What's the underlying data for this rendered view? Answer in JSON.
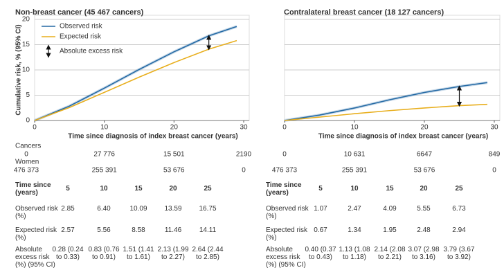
{
  "chart_data": [
    {
      "type": "line",
      "title": "Non-breast cancer (45 467 cancers)",
      "ylabel": "Cumulative risk, % (95% CI)",
      "xlabel": "Time since diagnosis of index breast cancer (years)",
      "x": [
        0,
        5,
        10,
        15,
        20,
        25,
        29
      ],
      "xlim": [
        0,
        30
      ],
      "xticks": [
        0,
        10,
        20,
        30
      ],
      "ylim": [
        0,
        20
      ],
      "yticks": [
        0,
        5,
        10,
        15,
        20
      ],
      "grid": true,
      "ytick_labels": true,
      "series": [
        {
          "name": "Observed risk",
          "color": "#2369a4",
          "values": [
            0,
            2.85,
            6.4,
            10.09,
            13.59,
            16.75,
            18.6
          ]
        },
        {
          "name": "Expected risk",
          "color": "#e8ae1c",
          "values": [
            0,
            2.57,
            5.56,
            8.58,
            11.46,
            14.11,
            15.8
          ]
        }
      ],
      "legend": {
        "position": "upper left",
        "arrow_label": "Absolute excess risk"
      }
    },
    {
      "type": "line",
      "title": "Contralateral breast cancer (18 127 cancers)",
      "xlabel": "Time since diagnosis of index breast cancer (years)",
      "x": [
        0,
        5,
        10,
        15,
        20,
        25,
        29
      ],
      "xlim": [
        0,
        30
      ],
      "xticks": [
        0,
        10,
        20,
        30
      ],
      "ylim": [
        0,
        20
      ],
      "yticks": [
        0,
        5,
        10,
        15,
        20
      ],
      "grid": true,
      "ytick_labels": false,
      "series": [
        {
          "name": "Observed risk",
          "color": "#2369a4",
          "values": [
            0,
            1.07,
            2.47,
            4.09,
            5.55,
            6.73,
            7.5
          ]
        },
        {
          "name": "Expected risk",
          "color": "#e8ae1c",
          "values": [
            0,
            0.67,
            1.34,
            1.95,
            2.48,
            2.94,
            3.2
          ]
        }
      ]
    }
  ],
  "at_risk": {
    "labels": [
      "Cancers",
      "Women"
    ],
    "groups": [
      [
        [
          "0",
          "27 776",
          "15 501",
          "2190"
        ],
        [
          "476 373",
          "255 391",
          "53 676",
          "0"
        ]
      ],
      [
        [
          "0",
          "10 631",
          "6647",
          "849"
        ],
        [
          "476 373",
          "255 391",
          "53 676",
          "0"
        ]
      ]
    ]
  },
  "tables": [
    {
      "header": [
        "Time since (years)",
        "5",
        "10",
        "15",
        "20",
        "25"
      ],
      "rows": [
        [
          "Observed risk (%)",
          "2.85",
          "6.40",
          "10.09",
          "13.59",
          "16.75"
        ],
        [
          "Expected risk (%)",
          "2.57",
          "5.56",
          "8.58",
          "11.46",
          "14.11"
        ],
        [
          "Absolute excess risk (%) (95% CI)",
          "0.28 (0.24 to 0.33)",
          "0.83 (0.76 to 0.91)",
          "1.51 (1.41 to 1.61)",
          "2.13 (1.99 to 2.27)",
          "2.64 (2.44 to 2.85)"
        ]
      ]
    },
    {
      "header": [
        "Time since (years)",
        "5",
        "10",
        "15",
        "20",
        "25"
      ],
      "rows": [
        [
          "Observed risk (%)",
          "1.07",
          "2.47",
          "4.09",
          "5.55",
          "6.73"
        ],
        [
          "Expected risk (%)",
          "0.67",
          "1.34",
          "1.95",
          "2.48",
          "2.94"
        ],
        [
          "Absolute excess risk (%) (95% CI)",
          "0.40 (0.37 to 0.43)",
          "1.13 (1.08 to 1.18)",
          "2.14 (2.08 to 2.21)",
          "3.07 (2.98 to 3.16)",
          "3.79 (3.67 to 3.92)"
        ]
      ]
    }
  ]
}
